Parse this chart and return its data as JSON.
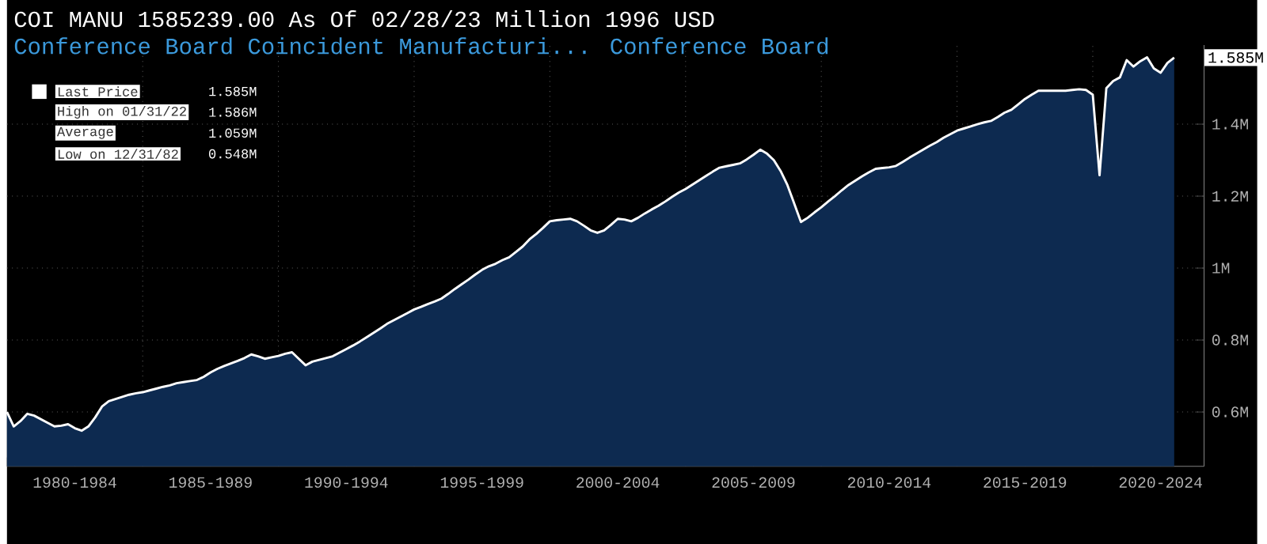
{
  "chart_data": {
    "type": "area",
    "title": "COI MANU 1585239.00 As Of 02/28/23 Million 1996 USD",
    "subtitle": "Conference Board Coincident Manufacturi... Conference Board",
    "categories": [
      null,
      null,
      null,
      null,
      null,
      null,
      null,
      null,
      null,
      null,
      null,
      null,
      null,
      null,
      null,
      null,
      null,
      null,
      null,
      null,
      null,
      null,
      null,
      null,
      null,
      null,
      null,
      null,
      null,
      null,
      null,
      null,
      null,
      null,
      null,
      null,
      null,
      null,
      null,
      null,
      null,
      null,
      null,
      null,
      null,
      null,
      null,
      null,
      null,
      null,
      null,
      null,
      null,
      null,
      null,
      null,
      null,
      null,
      null,
      null,
      null,
      null,
      null,
      null,
      null,
      null,
      null,
      null,
      null,
      null,
      null,
      null,
      null,
      null,
      null,
      null,
      null,
      null,
      null,
      null,
      null,
      null,
      null,
      null,
      null,
      null,
      null,
      null,
      null,
      null,
      null,
      null,
      null,
      null,
      null,
      null,
      null,
      null,
      null,
      null,
      null,
      null,
      null,
      null,
      null,
      null,
      null,
      null,
      null,
      null,
      null,
      null,
      null,
      null,
      null,
      null,
      null,
      null,
      null,
      null,
      null,
      null,
      null,
      null,
      null,
      null,
      null,
      null,
      null,
      null,
      null,
      null,
      null,
      null,
      null,
      null,
      null,
      null,
      null,
      null,
      null,
      null,
      null,
      null,
      null,
      null,
      null,
      null,
      null,
      null,
      null,
      null,
      null,
      null,
      null,
      null,
      null,
      null,
      null,
      null,
      null,
      null,
      null,
      null,
      null,
      null,
      null,
      null,
      null,
      null,
      null,
      null,
      null,
      null,
      null,
      null,
      null
    ],
    "series": [
      {
        "name": "Last Price",
        "color": "#0d2a50",
        "values": [
          0.6,
          0.56,
          0.575,
          0.595,
          0.59,
          0.58,
          0.57,
          0.56,
          0.562,
          0.566,
          0.555,
          0.548,
          0.56,
          0.585,
          0.615,
          0.63,
          0.636,
          0.642,
          0.648,
          0.652,
          0.655,
          0.66,
          0.665,
          0.67,
          0.674,
          0.68,
          0.683,
          0.686,
          0.689,
          0.698,
          0.71,
          0.72,
          0.728,
          0.735,
          0.742,
          0.75,
          0.76,
          0.755,
          0.748,
          0.752,
          0.756,
          0.762,
          0.766,
          0.748,
          0.73,
          0.74,
          0.745,
          0.75,
          0.755,
          0.765,
          0.775,
          0.785,
          0.796,
          0.808,
          0.82,
          0.832,
          0.845,
          0.855,
          0.865,
          0.875,
          0.885,
          0.892,
          0.9,
          0.907,
          0.915,
          0.928,
          0.942,
          0.955,
          0.968,
          0.982,
          0.995,
          1.005,
          1.012,
          1.022,
          1.03,
          1.045,
          1.06,
          1.08,
          1.095,
          1.112,
          1.13,
          1.133,
          1.135,
          1.137,
          1.13,
          1.118,
          1.105,
          1.098,
          1.105,
          1.12,
          1.137,
          1.135,
          1.13,
          1.14,
          1.152,
          1.163,
          1.173,
          1.185,
          1.198,
          1.21,
          1.22,
          1.232,
          1.244,
          1.256,
          1.268,
          1.279,
          1.283,
          1.287,
          1.291,
          1.302,
          1.315,
          1.329,
          1.318,
          1.3,
          1.27,
          1.231,
          1.18,
          1.128,
          1.14,
          1.155,
          1.169,
          1.185,
          1.2,
          1.216,
          1.231,
          1.243,
          1.255,
          1.266,
          1.276,
          1.278,
          1.28,
          1.284,
          1.295,
          1.307,
          1.318,
          1.329,
          1.34,
          1.35,
          1.362,
          1.372,
          1.382,
          1.388,
          1.394,
          1.4,
          1.405,
          1.409,
          1.42,
          1.432,
          1.44,
          1.455,
          1.47,
          1.482,
          1.493,
          1.493,
          1.493,
          1.493,
          1.493,
          1.495,
          1.497,
          1.495,
          1.482,
          1.258,
          1.5,
          1.52,
          1.53,
          1.578,
          1.56,
          1.575,
          1.586,
          1.555,
          1.543,
          1.57,
          1.585,
          null,
          null,
          null,
          null
        ]
      }
    ],
    "ylim": [
      0.449,
      1.62
    ],
    "yticks": [
      {
        "value": 0.6,
        "label": "0.6M"
      },
      {
        "value": 0.8,
        "label": "0.8M"
      },
      {
        "value": 1.0,
        "label": "1M"
      },
      {
        "value": 1.2,
        "label": "1.2M"
      },
      {
        "value": 1.4,
        "label": "1.4M"
      }
    ],
    "grid": true,
    "legend": "top left",
    "annotations": [
      "1.585M",
      "High on 01/31/22",
      "1.586M",
      "Average",
      "1.059M",
      "Low on 12/31/82",
      "0.548M",
      "1.585M",
      "1980-1984",
      "1985-1989",
      "1990-1994",
      "1995-1999",
      "2000-2004",
      "2005-2009",
      "2010-2014",
      "2015-2019",
      "2020-2024"
    ]
  }
}
